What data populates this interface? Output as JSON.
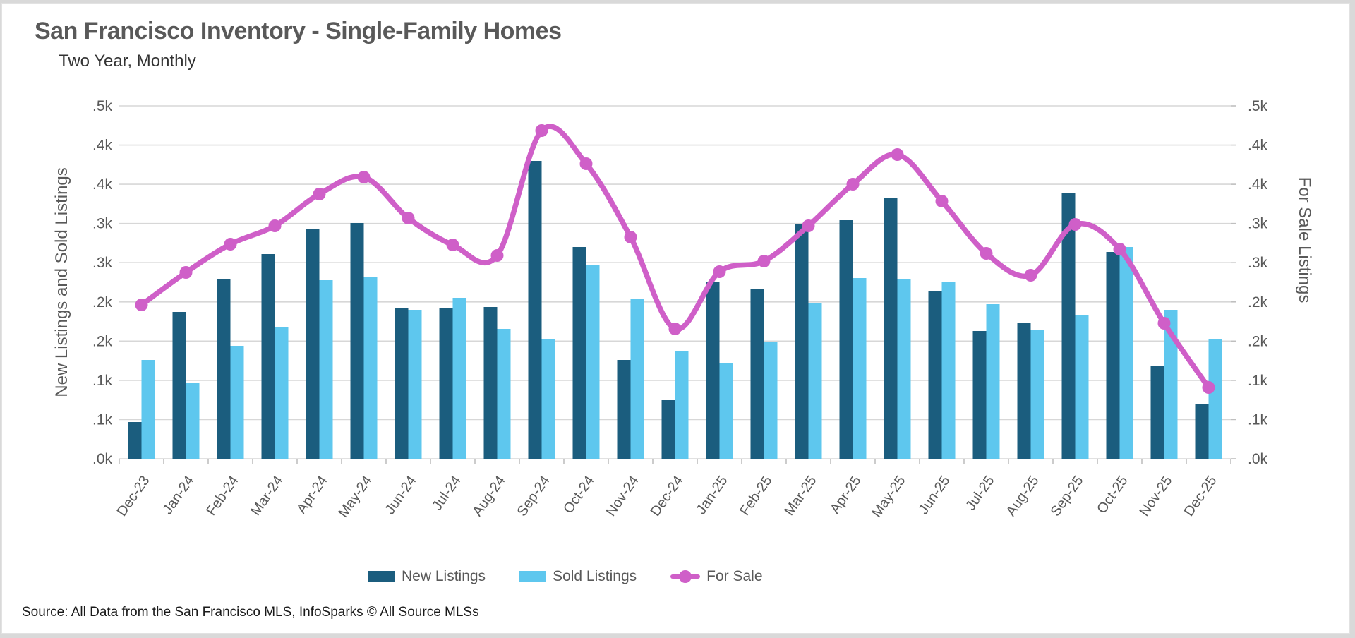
{
  "header": {
    "title": "San Francisco Inventory - Single-Family Homes",
    "subtitle": "Two Year, Monthly"
  },
  "source_note": "Source: All Data from the San Francisco MLS, InfoSparks © All Source MLSs",
  "colors": {
    "new_listings": "#1b5d7e",
    "sold_listings": "#5ec7ee",
    "for_sale": "#cf5fc8",
    "gridline": "#d7d7d7",
    "axis_text": "#595959",
    "title_text": "#595959"
  },
  "chart_data": {
    "type": "combo",
    "title": "San Francisco Inventory - Single-Family Homes",
    "subtitle": "Two Year, Monthly",
    "categories": [
      "Dec-23",
      "Jan-24",
      "Feb-24",
      "Mar-24",
      "Apr-24",
      "May-24",
      "Jun-24",
      "Jul-24",
      "Aug-24",
      "Sep-24",
      "Oct-24",
      "Nov-24",
      "Dec-24",
      "Jan-25",
      "Feb-25",
      "Mar-25",
      "Apr-25",
      "May-25",
      "Jun-25",
      "Jul-25",
      "Aug-25",
      "Sep-25",
      "Oct-25",
      "Nov-25",
      "Dec-25"
    ],
    "series": [
      {
        "name": "New Listings",
        "type": "bar",
        "color": "#1b5d7e",
        "values": [
          52,
          208,
          255,
          290,
          325,
          334,
          213,
          213,
          215,
          422,
          300,
          140,
          83,
          250,
          240,
          333,
          338,
          370,
          237,
          181,
          193,
          377,
          293,
          132,
          78
        ]
      },
      {
        "name": "Sold Listings",
        "type": "bar",
        "color": "#5ec7ee",
        "values": [
          140,
          108,
          160,
          186,
          253,
          258,
          211,
          228,
          184,
          170,
          274,
          227,
          152,
          135,
          166,
          220,
          256,
          254,
          250,
          219,
          183,
          204,
          300,
          211,
          169
        ]
      },
      {
        "name": "For Sale",
        "type": "line",
        "color": "#cf5fc8",
        "values": [
          218,
          264,
          304,
          330,
          375,
          399,
          341,
          303,
          288,
          465,
          418,
          314,
          184,
          265,
          280,
          330,
          389,
          431,
          365,
          291,
          260,
          332,
          297,
          192,
          101
        ]
      }
    ],
    "ylabel_left": "New Listings and Sold Listings",
    "ylabel_right": "For Sale Listings",
    "ylim": [
      0,
      500
    ],
    "y_tick_labels_top_to_bottom": [
      ".5k",
      ".4k",
      ".4k",
      ".3k",
      ".3k",
      ".2k",
      ".2k",
      ".1k",
      ".1k",
      ".0k"
    ],
    "grid": "on",
    "legend_position": "bottom"
  },
  "legend": {
    "new_label": "New Listings",
    "sold_label": "Sold Listings",
    "forsale_label": "For Sale"
  }
}
